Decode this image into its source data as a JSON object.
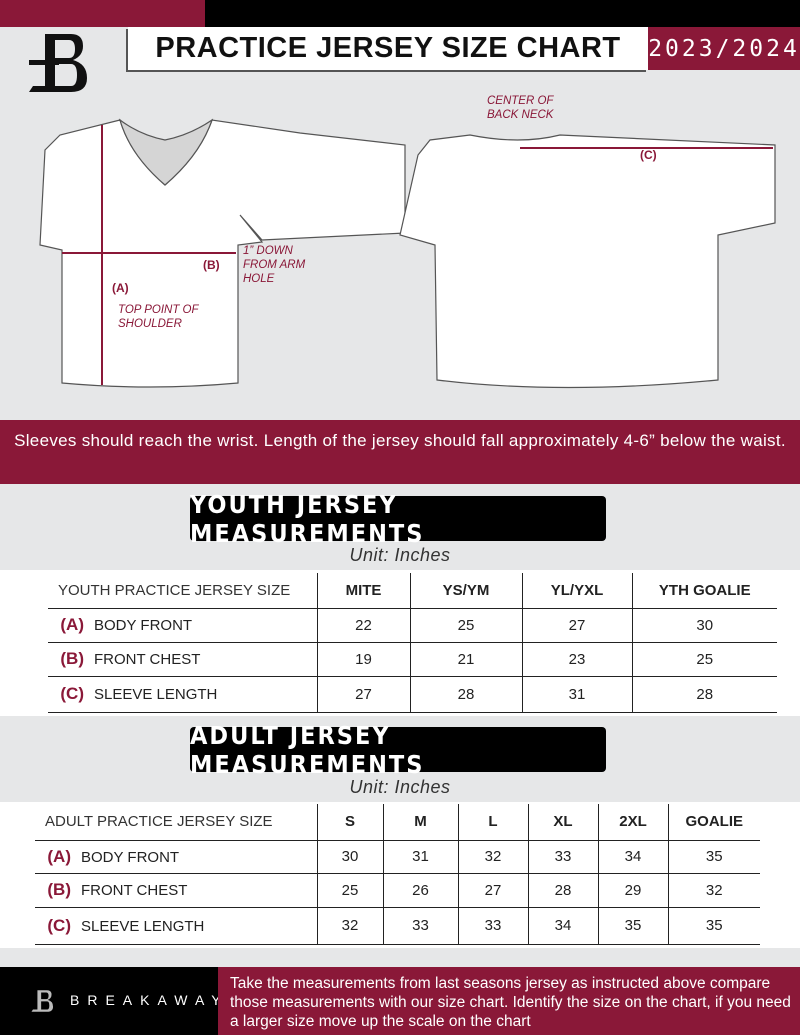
{
  "header": {
    "title": "PRACTICE JERSEY SIZE CHART",
    "season": "2023/2024"
  },
  "diagram": {
    "back_neck_label": "CENTER OF BACK NECK",
    "a_label": "(A)",
    "b_label": "(B)",
    "c_label": "(C)",
    "arm_hole_label": "1” DOWN FROM ARM HOLE",
    "shoulder_label": "TOP POINT OF SHOULDER"
  },
  "banner": "Sleeves should reach the wrist. Length of the jersey should fall approximately 4-6” below the waist.",
  "youth": {
    "title": "YOUTH JERSEY MEASUREMENTS",
    "unit": "Unit: Inches",
    "header": [
      "YOUTH PRACTICE JERSEY SIZE",
      "MITE",
      "YS/YM",
      "YL/YXL",
      "YTH GOALIE"
    ],
    "rows": [
      {
        "code": "(A)",
        "label": "BODY FRONT",
        "values": [
          "22",
          "25",
          "27",
          "30"
        ]
      },
      {
        "code": "(B)",
        "label": "FRONT CHEST",
        "values": [
          "19",
          "21",
          "23",
          "25"
        ]
      },
      {
        "code": "(C)",
        "label": "SLEEVE LENGTH",
        "values": [
          "27",
          "28",
          "31",
          "28"
        ]
      }
    ]
  },
  "adult": {
    "title": "ADULT JERSEY MEASUREMENTS",
    "unit": "Unit: Inches",
    "header": [
      "ADULT PRACTICE JERSEY SIZE",
      "S",
      "M",
      "L",
      "XL",
      "2XL",
      "GOALIE"
    ],
    "rows": [
      {
        "code": "(A)",
        "label": "BODY FRONT",
        "values": [
          "30",
          "31",
          "32",
          "33",
          "34",
          "35"
        ]
      },
      {
        "code": "(B)",
        "label": "FRONT CHEST",
        "values": [
          "25",
          "26",
          "27",
          "28",
          "29",
          "32"
        ]
      },
      {
        "code": "(C)",
        "label": "SLEEVE LENGTH",
        "values": [
          "32",
          "33",
          "33",
          "34",
          "35",
          "35"
        ]
      }
    ]
  },
  "footer": {
    "brand": "BREAKAWAY",
    "note": "Take the measurements from last seasons jersey as instructed above compare those measurements  with our size chart. Identify the size on the chart, if you need a larger size move up the scale on the chart"
  },
  "colors": {
    "accent": "#8a1838",
    "background": "#e6e7e8"
  }
}
